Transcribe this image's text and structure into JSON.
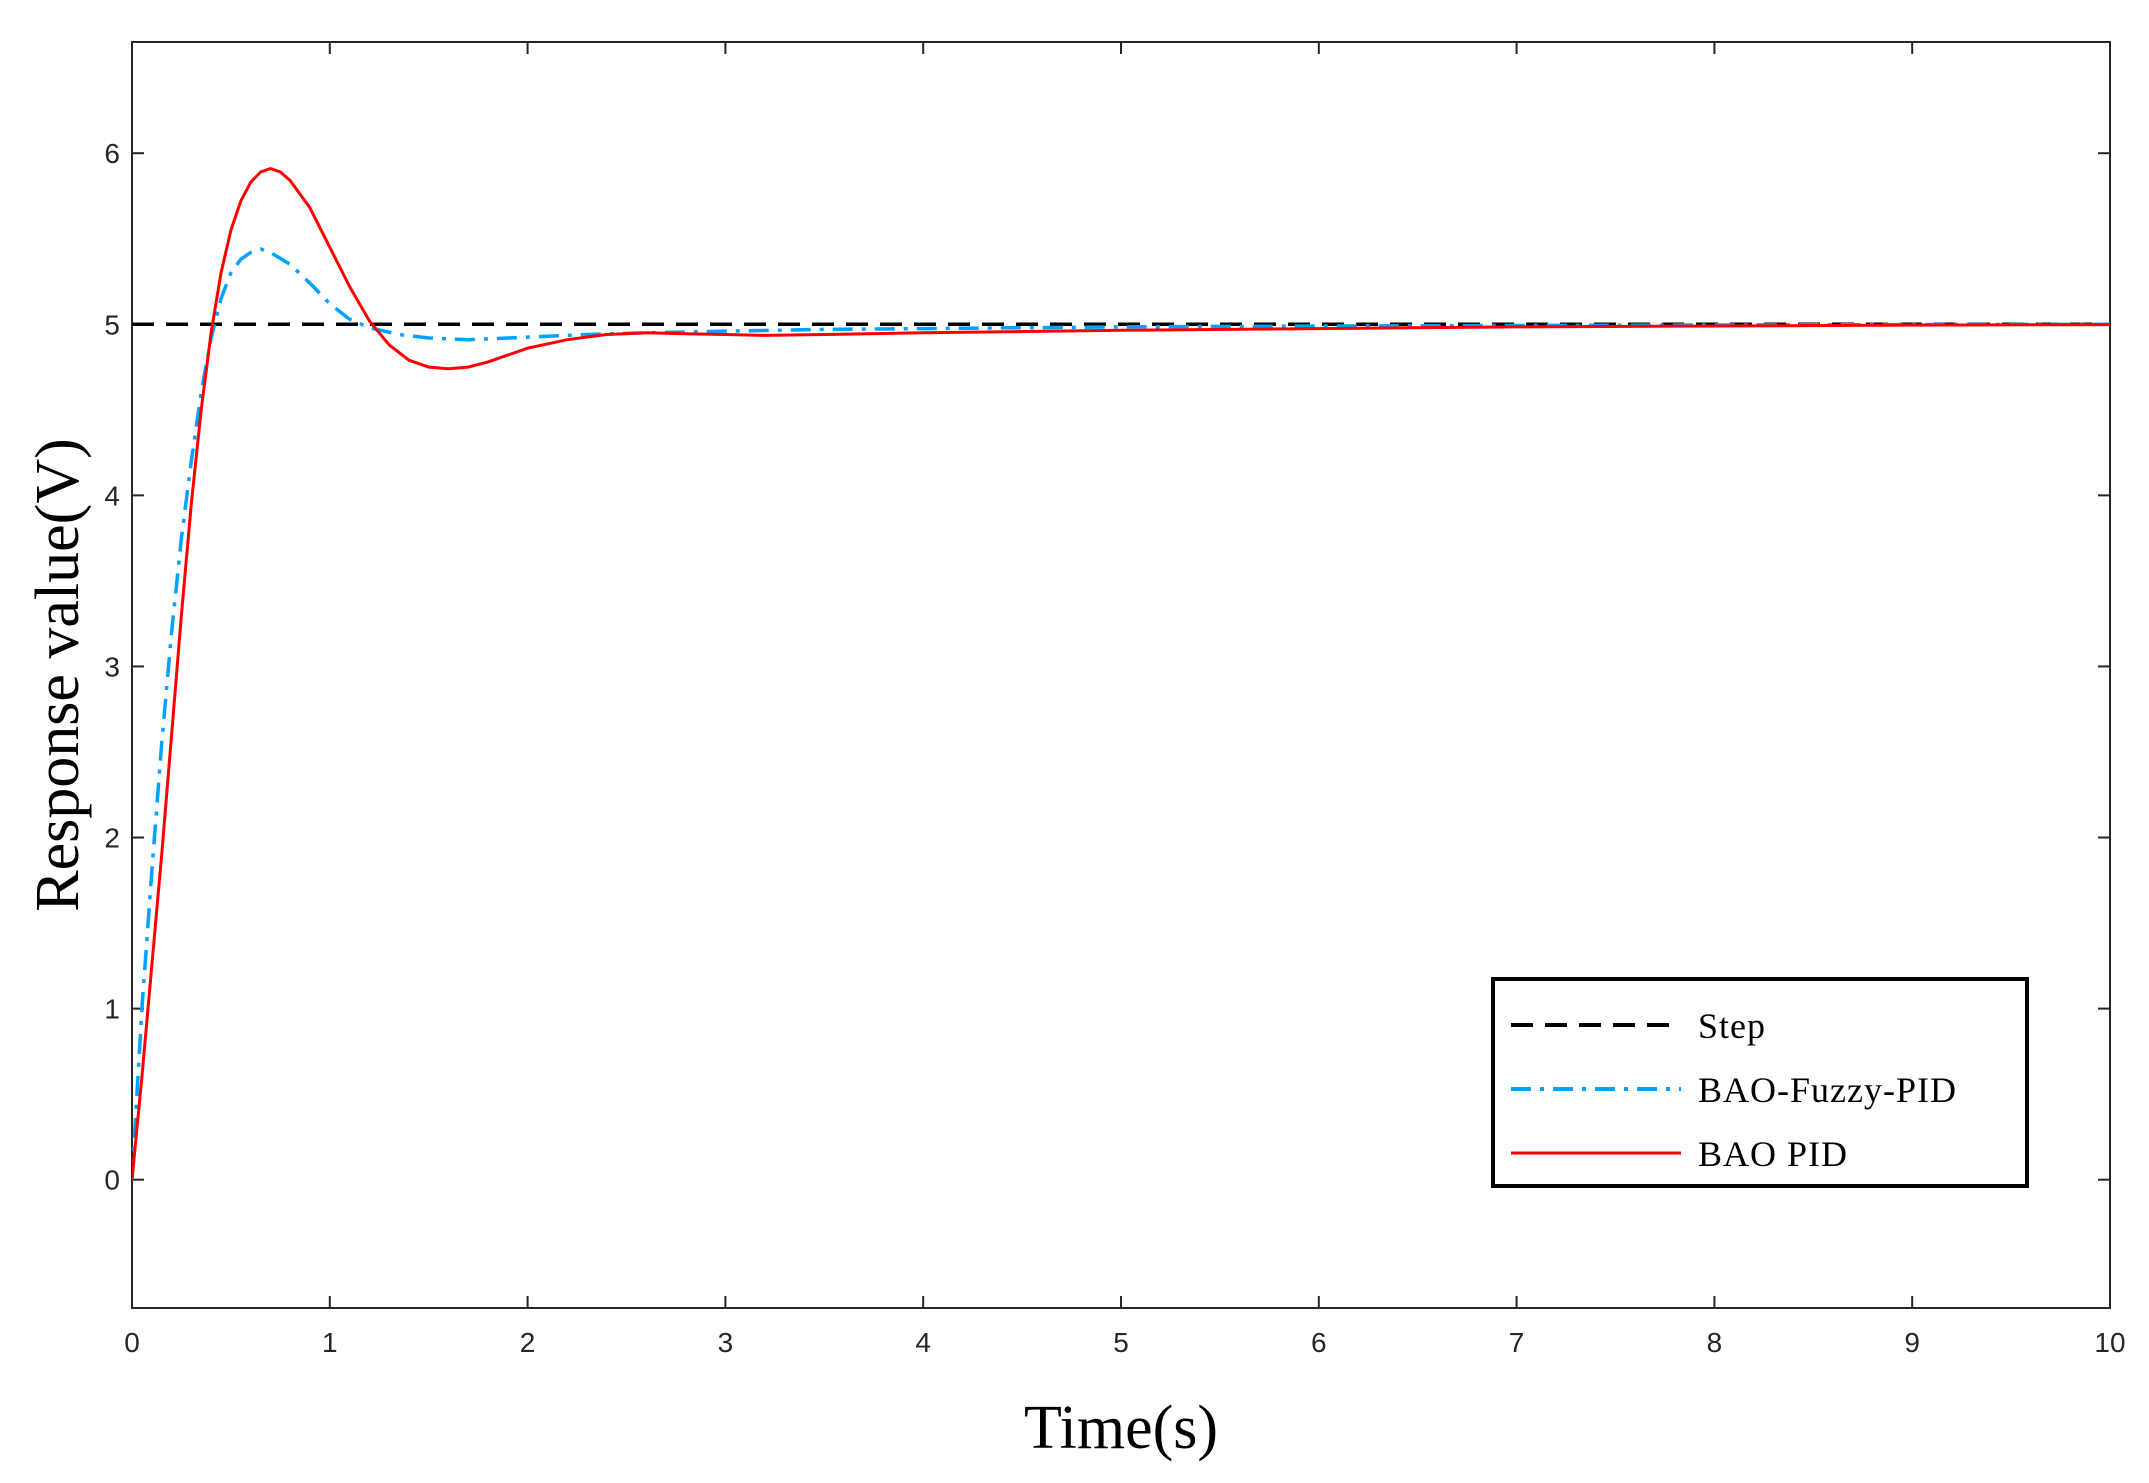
{
  "chart_data": {
    "type": "line",
    "title": "",
    "xlabel": "Time(s)",
    "ylabel": "Response value(V)",
    "xlim": [
      0,
      10
    ],
    "ylim": [
      -0.75,
      6.65
    ],
    "x_ticks": [
      0,
      1,
      2,
      3,
      4,
      5,
      6,
      7,
      8,
      9,
      10
    ],
    "y_ticks": [
      0,
      1,
      2,
      3,
      4,
      5,
      6
    ],
    "grid": false,
    "legend_position": "bottom-right",
    "series": [
      {
        "name": "Step",
        "color": "#000000",
        "style": "dashed",
        "points": [
          [
            0,
            5
          ],
          [
            10,
            5
          ]
        ]
      },
      {
        "name": "BAO-Fuzzy-PID",
        "color": "#00a2ff",
        "style": "dashdot",
        "points": [
          [
            0,
            0
          ],
          [
            0.05,
            1.0
          ],
          [
            0.1,
            1.8
          ],
          [
            0.15,
            2.55
          ],
          [
            0.2,
            3.2
          ],
          [
            0.25,
            3.75
          ],
          [
            0.3,
            4.2
          ],
          [
            0.35,
            4.6
          ],
          [
            0.4,
            4.92
          ],
          [
            0.45,
            5.15
          ],
          [
            0.5,
            5.3
          ],
          [
            0.55,
            5.38
          ],
          [
            0.6,
            5.42
          ],
          [
            0.65,
            5.44
          ],
          [
            0.7,
            5.42
          ],
          [
            0.8,
            5.35
          ],
          [
            0.9,
            5.24
          ],
          [
            1.0,
            5.12
          ],
          [
            1.1,
            5.03
          ],
          [
            1.2,
            4.98
          ],
          [
            1.35,
            4.94
          ],
          [
            1.5,
            4.92
          ],
          [
            1.7,
            4.91
          ],
          [
            1.9,
            4.92
          ],
          [
            2.1,
            4.93
          ],
          [
            2.3,
            4.94
          ],
          [
            2.6,
            4.95
          ],
          [
            3.0,
            4.96
          ],
          [
            3.5,
            4.97
          ],
          [
            4.0,
            4.975
          ],
          [
            5.0,
            4.985
          ],
          [
            6.0,
            4.99
          ],
          [
            7.0,
            4.993
          ],
          [
            8.0,
            4.996
          ],
          [
            9.0,
            4.998
          ],
          [
            10.0,
            5.0
          ]
        ]
      },
      {
        "name": "BAO PID",
        "color": "#ff0000",
        "style": "solid",
        "points": [
          [
            0,
            0
          ],
          [
            0.05,
            0.6
          ],
          [
            0.1,
            1.25
          ],
          [
            0.15,
            1.9
          ],
          [
            0.2,
            2.6
          ],
          [
            0.25,
            3.3
          ],
          [
            0.3,
            3.95
          ],
          [
            0.35,
            4.5
          ],
          [
            0.4,
            4.95
          ],
          [
            0.45,
            5.3
          ],
          [
            0.5,
            5.55
          ],
          [
            0.55,
            5.72
          ],
          [
            0.6,
            5.83
          ],
          [
            0.65,
            5.89
          ],
          [
            0.7,
            5.91
          ],
          [
            0.75,
            5.89
          ],
          [
            0.8,
            5.84
          ],
          [
            0.9,
            5.68
          ],
          [
            1.0,
            5.45
          ],
          [
            1.1,
            5.22
          ],
          [
            1.2,
            5.02
          ],
          [
            1.3,
            4.88
          ],
          [
            1.4,
            4.79
          ],
          [
            1.5,
            4.75
          ],
          [
            1.6,
            4.74
          ],
          [
            1.7,
            4.75
          ],
          [
            1.8,
            4.78
          ],
          [
            1.9,
            4.82
          ],
          [
            2.0,
            4.86
          ],
          [
            2.2,
            4.91
          ],
          [
            2.4,
            4.94
          ],
          [
            2.6,
            4.95
          ],
          [
            2.8,
            4.945
          ],
          [
            3.0,
            4.94
          ],
          [
            3.2,
            4.935
          ],
          [
            3.5,
            4.94
          ],
          [
            4.0,
            4.95
          ],
          [
            5.0,
            4.965
          ],
          [
            6.0,
            4.975
          ],
          [
            7.0,
            4.985
          ],
          [
            8.0,
            4.99
          ],
          [
            9.0,
            4.995
          ],
          [
            10.0,
            4.998
          ]
        ]
      }
    ]
  }
}
